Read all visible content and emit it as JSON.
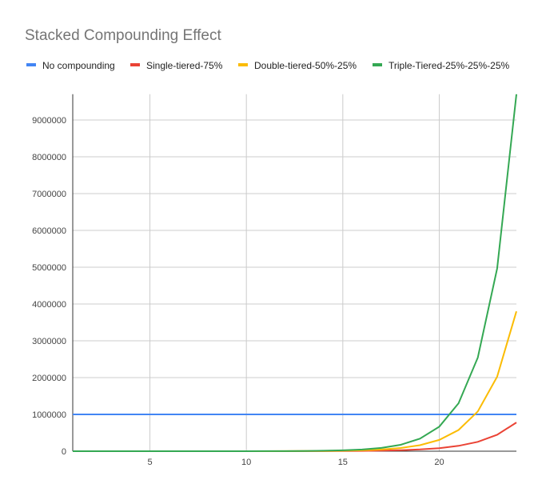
{
  "chart_data": {
    "type": "line",
    "title": "Stacked Compounding Effect",
    "xlabel": "",
    "ylabel": "",
    "xlim": [
      1,
      24
    ],
    "ylim": [
      0,
      9700000
    ],
    "grid": true,
    "legend_position": "top",
    "x_ticks": [
      5,
      10,
      15,
      20
    ],
    "y_ticks": [
      0,
      1000000,
      2000000,
      3000000,
      4000000,
      5000000,
      6000000,
      7000000,
      8000000,
      9000000
    ],
    "x": [
      1,
      2,
      3,
      4,
      5,
      6,
      7,
      8,
      9,
      10,
      11,
      12,
      13,
      14,
      15,
      16,
      17,
      18,
      19,
      20,
      21,
      22,
      23,
      24
    ],
    "series": [
      {
        "name": "No compounding",
        "color": "#4285f4",
        "values": [
          1000000,
          1000000,
          1000000,
          1000000,
          1000000,
          1000000,
          1000000,
          1000000,
          1000000,
          1000000,
          1000000,
          1000000,
          1000000,
          1000000,
          1000000,
          1000000,
          1000000,
          1000000,
          1000000,
          1000000,
          1000000,
          1000000,
          1000000,
          1000000
        ]
      },
      {
        "name": "Single-tiered-75%",
        "color": "#ea4335",
        "values": [
          2,
          3.5,
          6,
          11,
          19,
          33,
          57,
          101,
          176,
          308,
          539,
          944,
          1650,
          2890,
          5060,
          8850,
          15500,
          27100,
          47400,
          83000,
          146000,
          255000,
          446000,
          780000
        ]
      },
      {
        "name": "Double-tiered-50%-25%",
        "color": "#fbbc04",
        "values": [
          2,
          3.8,
          7,
          13,
          25,
          46,
          87,
          163,
          305,
          572,
          1070,
          2010,
          3770,
          7070,
          13300,
          24900,
          46600,
          87400,
          164000,
          307000,
          576000,
          1081000,
          2027000,
          3800000
        ]
      },
      {
        "name": "Triple-Tiered-25%-25%-25%",
        "color": "#34a853",
        "values": [
          2,
          3.9,
          7.6,
          15,
          29,
          57,
          111,
          216,
          422,
          825,
          1610,
          3150,
          6150,
          12000,
          23500,
          45800,
          89500,
          174700,
          341300,
          666600,
          1302000,
          2543000,
          4966000,
          9700000
        ]
      }
    ]
  }
}
